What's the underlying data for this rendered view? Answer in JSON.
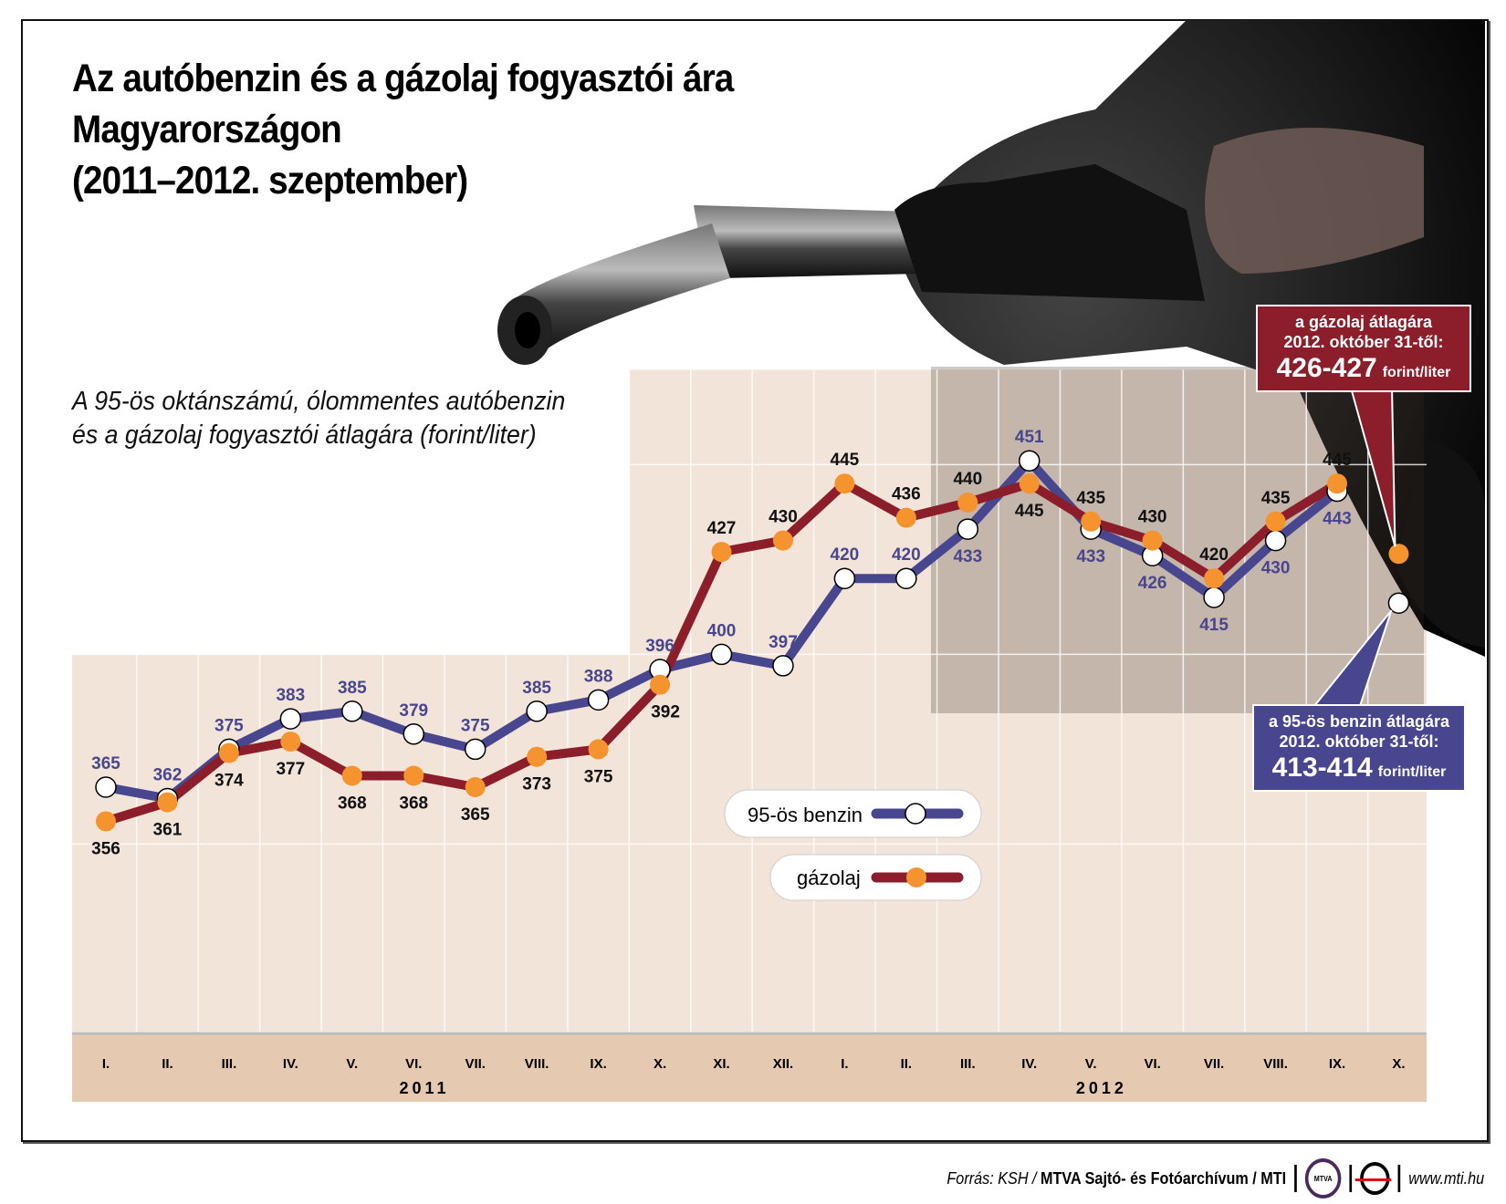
{
  "title": [
    "Az autóbenzin és a gázolaj fogyasztói ára",
    "Magyarországon",
    "(2011–2012. szeptember)"
  ],
  "subtitle": [
    "A 95-ös oktánszámú, ólommentes autóbenzin",
    "és a gázolaj fogyasztói átlagára (forint/liter)"
  ],
  "colors": {
    "benzin": "#48468f",
    "gazolaj": "#8c1e2b",
    "orange_marker": "#f5932f",
    "plot_bg": "#f2e4d8",
    "axis_band": "#e5c9b1"
  },
  "chart_data": {
    "type": "line",
    "categories": [
      "I.",
      "II.",
      "III.",
      "IV.",
      "V.",
      "VI.",
      "VII.",
      "VIII.",
      "IX.",
      "X.",
      "XI.",
      "XII.",
      "I.",
      "II.",
      "III.",
      "IV.",
      "V.",
      "VI.",
      "VII.",
      "VIII.",
      "IX.",
      "X."
    ],
    "year_labels": [
      "2011",
      "2012"
    ],
    "unit": "forint/liter",
    "ylim": [
      300,
      475
    ],
    "grid": true,
    "series": [
      {
        "name": "95-ös benzin",
        "values": [
          365,
          362,
          375,
          383,
          385,
          379,
          375,
          385,
          388,
          396,
          400,
          397,
          420,
          420,
          433,
          451,
          433,
          426,
          415,
          430,
          443,
          413.5
        ],
        "labels": [
          "365",
          "362",
          "375",
          "383",
          "385",
          "379",
          "375",
          "385",
          "388",
          "396",
          "400",
          "397",
          "420",
          "420",
          "433",
          "451",
          "433",
          "426",
          "415",
          "430",
          "443",
          ""
        ]
      },
      {
        "name": "gázolaj",
        "values": [
          356,
          361,
          374,
          377,
          368,
          368,
          365,
          373,
          375,
          392,
          427,
          430,
          445,
          436,
          440,
          445,
          435,
          430,
          420,
          435,
          445,
          426.5
        ],
        "labels": [
          "356",
          "361",
          "374",
          "377",
          "368",
          "368",
          "365",
          "373",
          "375",
          "392",
          "427",
          "430",
          "445",
          "436",
          "440",
          "445",
          "435",
          "430",
          "420",
          "435",
          "445",
          ""
        ]
      }
    ]
  },
  "legend": {
    "benzin": "95-ös benzin",
    "gazolaj": "gázolaj"
  },
  "callouts": {
    "gazolaj": {
      "line1": "a gázolaj átlagára",
      "line2": "2012. október 31-től:",
      "value": "426-427",
      "unit": "forint/liter"
    },
    "benzin": {
      "line1": "a 95-ös benzin átlagára",
      "line2": "2012. október 31-től:",
      "value": "413-414",
      "unit": "forint/liter"
    }
  },
  "footer": {
    "source_prefix": "Forrás: KSH / ",
    "source_org": "MTVA Sajtó- és Fotóarchívum / MTI",
    "logo1": "MTVA",
    "website": "www.mti.hu"
  }
}
